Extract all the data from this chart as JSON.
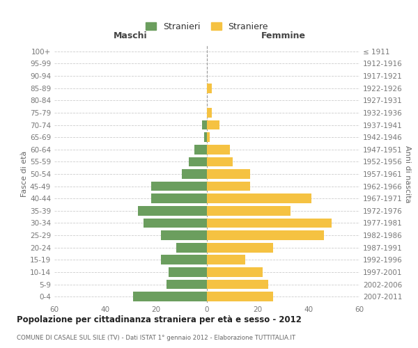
{
  "age_groups": [
    "0-4",
    "5-9",
    "10-14",
    "15-19",
    "20-24",
    "25-29",
    "30-34",
    "35-39",
    "40-44",
    "45-49",
    "50-54",
    "55-59",
    "60-64",
    "65-69",
    "70-74",
    "75-79",
    "80-84",
    "85-89",
    "90-94",
    "95-99",
    "100+"
  ],
  "birth_years": [
    "2007-2011",
    "2002-2006",
    "1997-2001",
    "1992-1996",
    "1987-1991",
    "1982-1986",
    "1977-1981",
    "1972-1976",
    "1967-1971",
    "1962-1966",
    "1957-1961",
    "1952-1956",
    "1947-1951",
    "1942-1946",
    "1937-1941",
    "1932-1936",
    "1927-1931",
    "1922-1926",
    "1917-1921",
    "1912-1916",
    "≤ 1911"
  ],
  "maschi": [
    29,
    16,
    15,
    18,
    12,
    18,
    25,
    27,
    22,
    22,
    10,
    7,
    5,
    1,
    2,
    0,
    0,
    0,
    0,
    0,
    0
  ],
  "femmine": [
    26,
    24,
    22,
    15,
    26,
    46,
    49,
    33,
    41,
    17,
    17,
    10,
    9,
    1,
    5,
    2,
    0,
    2,
    0,
    0,
    0
  ],
  "maschi_color": "#6b9e5e",
  "femmine_color": "#f5c242",
  "background_color": "#ffffff",
  "grid_color": "#cccccc",
  "title": "Popolazione per cittadinanza straniera per età e sesso - 2012",
  "subtitle": "COMUNE DI CASALE SUL SILE (TV) - Dati ISTAT 1° gennaio 2012 - Elaborazione TUTTITALIA.IT",
  "xlabel_left": "Maschi",
  "xlabel_right": "Femmine",
  "ylabel_left": "Fasce di età",
  "ylabel_right": "Anni di nascita",
  "legend_maschi": "Stranieri",
  "legend_femmine": "Straniere",
  "xlim": 60
}
